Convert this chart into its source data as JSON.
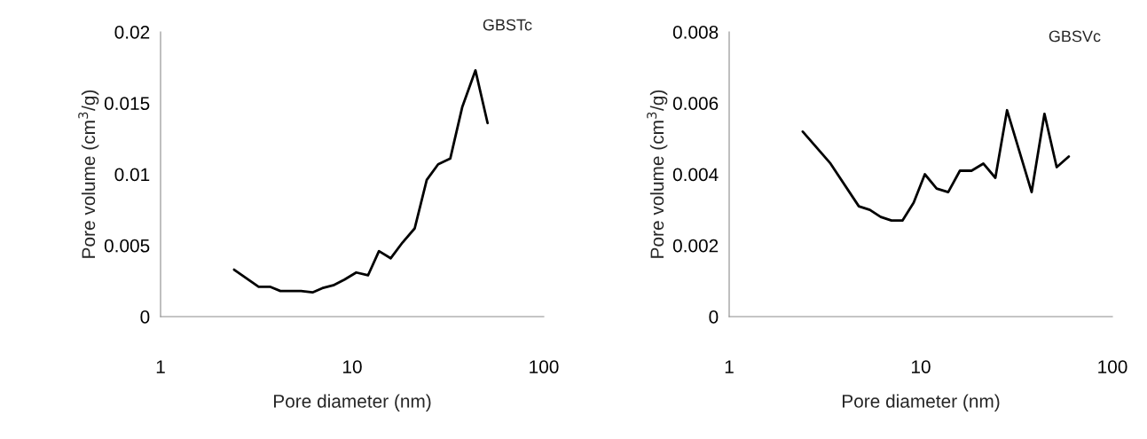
{
  "chart_data": [
    {
      "type": "line",
      "xlabel": "Pore diameter (nm)",
      "ylabel": "Pore volume (cm$^{3}$/g)",
      "annotations": [
        "GBSTc"
      ],
      "log": "x",
      "xlim": [
        1,
        100
      ],
      "xticks": [
        1,
        10,
        100
      ],
      "ylim": [
        0,
        0.02
      ],
      "yticks": [
        0,
        0.005,
        0.01,
        0.015,
        0.02
      ],
      "grid": false,
      "legend": false,
      "marker": "none",
      "line_style": "solid",
      "series": [
        {
          "color": "#000000",
          "x": [
            2.42,
            3.25,
            3.72,
            4.22,
            4.73,
            5.41,
            6.21,
            6.98,
            7.97,
            9.12,
            10.5,
            12.1,
            13.8,
            15.9,
            18.3,
            21.2,
            24.5,
            28.1,
            32.5,
            37.5,
            44.0,
            50.9
          ],
          "values": [
            0.0033,
            0.0021,
            0.0021,
            0.0018,
            0.0018,
            0.0018,
            0.0017,
            0.002,
            0.0022,
            0.0026,
            0.0031,
            0.0029,
            0.0046,
            0.0041,
            0.0052,
            0.0062,
            0.0096,
            0.0107,
            0.0111,
            0.0147,
            0.0173,
            0.0136
          ]
        }
      ]
    },
    {
      "type": "line",
      "xlabel": "Pore diameter (nm)",
      "ylabel": "Pore volume (cm$^{3}$/g)",
      "annotations": [
        "GBSVc"
      ],
      "log": "x",
      "xlim": [
        1,
        100
      ],
      "xticks": [
        1,
        10,
        100
      ],
      "ylim": [
        0,
        0.008
      ],
      "yticks": [
        0,
        0.002,
        0.004,
        0.006,
        0.008
      ],
      "grid": false,
      "legend": false,
      "marker": "none",
      "line_style": "solid",
      "series": [
        {
          "color": "#000000",
          "x": [
            2.42,
            3.38,
            4.75,
            5.42,
            6.18,
            7.03,
            8.02,
            9.18,
            10.5,
            12.1,
            13.9,
            16.0,
            18.4,
            21.2,
            24.5,
            28.2,
            37.9,
            44.2,
            51.2,
            59.2
          ],
          "values": [
            0.0052,
            0.0043,
            0.0031,
            0.003,
            0.0028,
            0.0027,
            0.0027,
            0.0032,
            0.004,
            0.0036,
            0.0035,
            0.0041,
            0.0041,
            0.0043,
            0.0039,
            0.0058,
            0.0035,
            0.0057,
            0.0042,
            0.0045
          ]
        }
      ]
    }
  ]
}
